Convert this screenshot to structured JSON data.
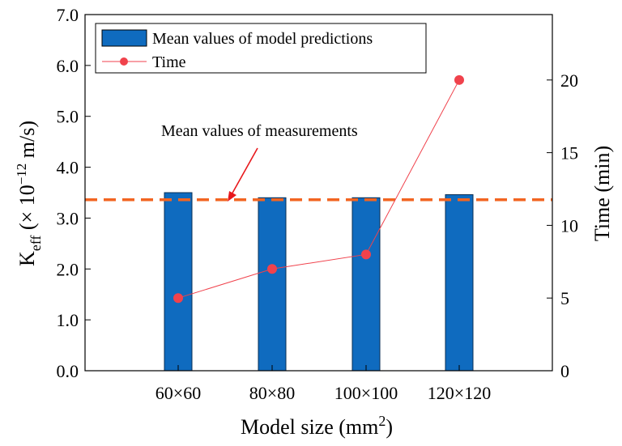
{
  "chart_data": {
    "type": "bar",
    "categories": [
      "60×60",
      "80×80",
      "100×100",
      "120×120"
    ],
    "series": [
      {
        "name": "Mean values of model predictions",
        "axis": "left",
        "type": "bar",
        "values": [
          3.5,
          3.4,
          3.4,
          3.46
        ],
        "color": "#0f6bbf"
      },
      {
        "name": "Time",
        "axis": "right",
        "type": "line",
        "values": [
          5,
          7,
          8,
          20
        ],
        "color": "#f0424c"
      }
    ],
    "reference_line": {
      "label": "Mean values of measurements",
      "value": 3.36,
      "color": "#f26522",
      "label_color": "#e8181c"
    },
    "xlabel": {
      "text": "Model size (mm",
      "sup": "2",
      "close": ")"
    },
    "ylabel_left": {
      "main": "K",
      "sub": "eff",
      "rest_a": " (× 10",
      "sup": "−12",
      "rest_b": "  m/s)"
    },
    "ylabel_right": "Time (min)",
    "ylim_left": [
      0,
      7
    ],
    "ylim_right": [
      0,
      24.5
    ],
    "yticks_left": [
      "0.0",
      "1.0",
      "2.0",
      "3.0",
      "4.0",
      "5.0",
      "6.0",
      "7.0"
    ],
    "yticks_right": [
      "0",
      "5",
      "10",
      "15",
      "20"
    ],
    "legend_position": "top-left",
    "grid": false
  }
}
